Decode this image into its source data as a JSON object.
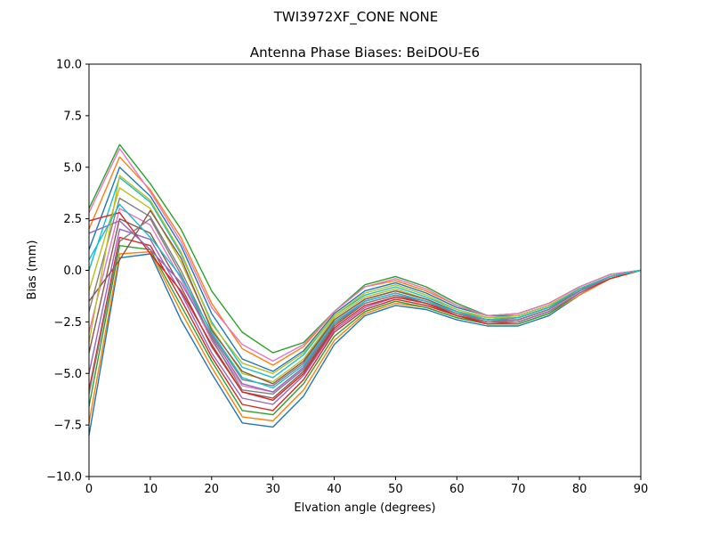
{
  "figure": {
    "suptitle": "TWI3972XF_CONE  NONE"
  },
  "chart_data": {
    "type": "line",
    "title": "Antenna Phase Biases: BeiDOU-E6",
    "xlabel": "Elvation angle (degrees)",
    "ylabel": "Bias (mm)",
    "xlim": [
      0,
      90
    ],
    "ylim": [
      -10,
      10
    ],
    "x": [
      0,
      5,
      10,
      15,
      20,
      25,
      30,
      35,
      40,
      45,
      50,
      55,
      60,
      65,
      70,
      75,
      80,
      85,
      90
    ],
    "xticks": [
      0,
      10,
      20,
      30,
      40,
      50,
      60,
      70,
      80,
      90
    ],
    "xtick_labels": [
      "0",
      "10",
      "20",
      "30",
      "40",
      "50",
      "60",
      "70",
      "80",
      "90"
    ],
    "yticks": [
      -10,
      -7.5,
      -5,
      -2.5,
      0,
      2.5,
      5,
      7.5,
      10
    ],
    "ytick_labels": [
      "−10.0",
      "−7.5",
      "−5.0",
      "−2.5",
      "0.0",
      "2.5",
      "5.0",
      "7.5",
      "10.0"
    ],
    "grid": false,
    "legend": "none",
    "colors": [
      "#1f77b4",
      "#ff7f0e",
      "#2ca02c",
      "#d62728",
      "#9467bd",
      "#8c564b",
      "#e377c2",
      "#7f7f7f",
      "#bcbd22",
      "#17becf"
    ],
    "series_note": "many overlapping per-azimuth curves (unlabeled)",
    "series": [
      {
        "values": [
          -8.0,
          0.6,
          0.8,
          -2.4,
          -5.0,
          -7.4,
          -7.6,
          -6.1,
          -3.6,
          -2.2,
          -1.7,
          -1.9,
          -2.4,
          -2.7,
          -2.7,
          -2.2,
          -1.2,
          -0.4,
          0.0
        ]
      },
      {
        "values": [
          -7.4,
          0.8,
          0.9,
          -2.0,
          -4.7,
          -7.1,
          -7.3,
          -5.8,
          -3.4,
          -2.1,
          -1.6,
          -1.8,
          -2.3,
          -2.6,
          -2.6,
          -2.1,
          -1.2,
          -0.4,
          0.0
        ]
      },
      {
        "values": [
          -6.6,
          1.2,
          1.0,
          -1.7,
          -4.4,
          -6.8,
          -7.0,
          -5.5,
          -3.2,
          -2.0,
          -1.5,
          -1.8,
          -2.3,
          -2.6,
          -2.6,
          -2.1,
          -1.1,
          -0.4,
          0.0
        ]
      },
      {
        "values": [
          -5.8,
          1.6,
          1.2,
          -1.4,
          -4.2,
          -6.5,
          -6.8,
          -5.3,
          -3.0,
          -1.9,
          -1.4,
          -1.7,
          -2.2,
          -2.6,
          -2.5,
          -2.0,
          -1.1,
          -0.4,
          0.0
        ]
      },
      {
        "values": [
          -5.0,
          2.0,
          1.5,
          -1.1,
          -4.0,
          -6.2,
          -6.5,
          -5.1,
          -2.9,
          -1.8,
          -1.3,
          -1.6,
          -2.2,
          -2.5,
          -2.5,
          -2.0,
          -1.1,
          -0.3,
          0.0
        ]
      },
      {
        "values": [
          -4.0,
          2.5,
          1.8,
          -0.8,
          -3.7,
          -5.9,
          -6.2,
          -4.9,
          -2.7,
          -1.6,
          -1.2,
          -1.6,
          -2.1,
          -2.5,
          -2.4,
          -1.9,
          -1.0,
          -0.3,
          0.0
        ]
      },
      {
        "values": [
          -3.0,
          3.0,
          2.2,
          -0.4,
          -3.4,
          -5.6,
          -5.9,
          -4.7,
          -2.5,
          -1.5,
          -1.1,
          -1.5,
          -2.1,
          -2.4,
          -2.4,
          -1.9,
          -1.0,
          -0.3,
          0.0
        ]
      },
      {
        "values": [
          -2.0,
          3.5,
          2.6,
          0.0,
          -3.1,
          -5.3,
          -5.6,
          -4.5,
          -2.4,
          -1.4,
          -1.0,
          -1.4,
          -2.0,
          -2.4,
          -2.3,
          -1.8,
          -1.0,
          -0.3,
          0.0
        ]
      },
      {
        "values": [
          -1.0,
          4.0,
          3.0,
          0.4,
          -2.8,
          -5.0,
          -5.4,
          -4.3,
          -2.3,
          -1.3,
          -0.9,
          -1.4,
          -2.0,
          -2.3,
          -2.3,
          -1.8,
          -0.9,
          -0.3,
          0.0
        ]
      },
      {
        "values": [
          0.0,
          4.5,
          3.3,
          0.8,
          -2.5,
          -4.7,
          -5.2,
          -4.1,
          -2.2,
          -1.2,
          -0.8,
          -1.3,
          -1.9,
          -2.3,
          -2.2,
          -1.7,
          -0.9,
          -0.3,
          0.0
        ]
      },
      {
        "values": [
          1.0,
          5.0,
          3.6,
          1.2,
          -2.1,
          -4.3,
          -4.9,
          -3.9,
          -2.1,
          -1.0,
          -0.6,
          -1.1,
          -1.8,
          -2.2,
          -2.2,
          -1.7,
          -0.9,
          -0.3,
          0.0
        ]
      },
      {
        "values": [
          2.0,
          5.5,
          3.9,
          1.6,
          -1.6,
          -3.8,
          -4.6,
          -3.7,
          -2.0,
          -0.8,
          -0.5,
          -1.0,
          -1.7,
          -2.2,
          -2.1,
          -1.6,
          -0.8,
          -0.2,
          0.0
        ]
      },
      {
        "values": [
          3.0,
          6.1,
          4.2,
          2.0,
          -1.0,
          -3.0,
          -4.0,
          -3.5,
          -2.0,
          -0.7,
          -0.3,
          -0.8,
          -1.6,
          -2.2,
          -2.1,
          -1.6,
          -0.8,
          -0.2,
          0.0
        ]
      },
      {
        "values": [
          2.4,
          2.8,
          0.8,
          -1.0,
          -3.6,
          -5.9,
          -6.3,
          -5.0,
          -2.8,
          -1.7,
          -1.3,
          -1.6,
          -2.2,
          -2.5,
          -2.4,
          -1.9,
          -1.0,
          -0.3,
          0.0
        ]
      },
      {
        "values": [
          1.8,
          2.4,
          1.0,
          -0.6,
          -3.2,
          -5.5,
          -5.9,
          -4.7,
          -2.6,
          -1.5,
          -1.1,
          -1.5,
          -2.1,
          -2.4,
          -2.4,
          -1.9,
          -1.0,
          -0.3,
          0.0
        ]
      },
      {
        "values": [
          -1.5,
          0.5,
          2.9,
          0.6,
          -2.9,
          -4.9,
          -5.5,
          -4.4,
          -2.4,
          -1.4,
          -1.0,
          -1.4,
          -2.0,
          -2.4,
          -2.3,
          -1.8,
          -0.9,
          -0.3,
          0.0
        ]
      },
      {
        "values": [
          2.8,
          5.9,
          3.8,
          1.4,
          -1.8,
          -3.6,
          -4.4,
          -3.6,
          -2.0,
          -0.8,
          -0.4,
          -0.9,
          -1.7,
          -2.2,
          -2.1,
          -1.6,
          -0.8,
          -0.2,
          0.0
        ]
      },
      {
        "values": [
          -6.0,
          1.4,
          2.5,
          -0.2,
          -3.3,
          -5.8,
          -6.0,
          -4.8,
          -2.6,
          -1.6,
          -1.2,
          -1.5,
          -2.1,
          -2.5,
          -2.4,
          -1.9,
          -1.0,
          -0.3,
          0.0
        ]
      },
      {
        "values": [
          -3.5,
          4.6,
          3.4,
          0.9,
          -2.6,
          -4.5,
          -5.0,
          -4.0,
          -2.2,
          -1.1,
          -0.7,
          -1.2,
          -1.9,
          -2.3,
          -2.2,
          -1.7,
          -0.9,
          -0.3,
          0.0
        ]
      },
      {
        "values": [
          0.5,
          3.2,
          1.6,
          -0.3,
          -3.0,
          -5.2,
          -5.7,
          -4.6,
          -2.5,
          -1.5,
          -1.1,
          -1.5,
          -2.0,
          -2.4,
          -2.3,
          -1.8,
          -0.9,
          -0.3,
          0.0
        ]
      }
    ]
  }
}
